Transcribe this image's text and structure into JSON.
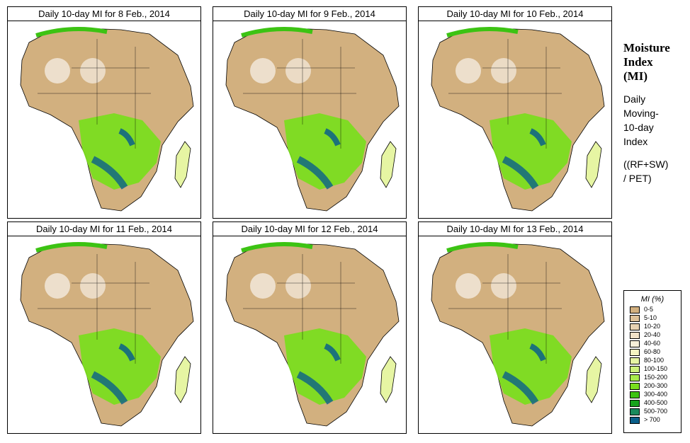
{
  "panels": [
    {
      "title": "Daily 10-day MI for  8 Feb., 2014"
    },
    {
      "title": "Daily 10-day MI for  9 Feb., 2014"
    },
    {
      "title": "Daily 10-day MI for  10 Feb., 2014"
    },
    {
      "title": "Daily 10-day MI for  11 Feb., 2014"
    },
    {
      "title": "Daily 10-day MI for  12 Feb., 2014"
    },
    {
      "title": "Daily 10-day MI for  13 Feb., 2014"
    }
  ],
  "side": {
    "title_lines": [
      "Moisture",
      "Index",
      "(MI)"
    ],
    "sub_lines": [
      "Daily",
      "Moving-",
      "10-day",
      "Index"
    ],
    "formula_lines": [
      "((RF+SW)",
      "  / PET)"
    ]
  },
  "legend": {
    "title": "MI (%)",
    "items": [
      {
        "label": "0-5",
        "color": "#d2b07f"
      },
      {
        "label": "5-10",
        "color": "#ddc199"
      },
      {
        "label": "10-20",
        "color": "#e8d2b2"
      },
      {
        "label": "20-40",
        "color": "#f1e2c8"
      },
      {
        "label": "40-60",
        "color": "#f7efd9"
      },
      {
        "label": "60-80",
        "color": "#f5f5c2"
      },
      {
        "label": "80-100",
        "color": "#e6f5a3"
      },
      {
        "label": "100-150",
        "color": "#cdf27c"
      },
      {
        "label": "150-200",
        "color": "#a8ec4c"
      },
      {
        "label": "200-300",
        "color": "#78de1c"
      },
      {
        "label": "300-400",
        "color": "#3cc313"
      },
      {
        "label": "400-500",
        "color": "#18a31c"
      },
      {
        "label": "500-700",
        "color": "#1a8a5c"
      },
      {
        "label": "> 700",
        "color": "#0a5f8a"
      }
    ]
  }
}
